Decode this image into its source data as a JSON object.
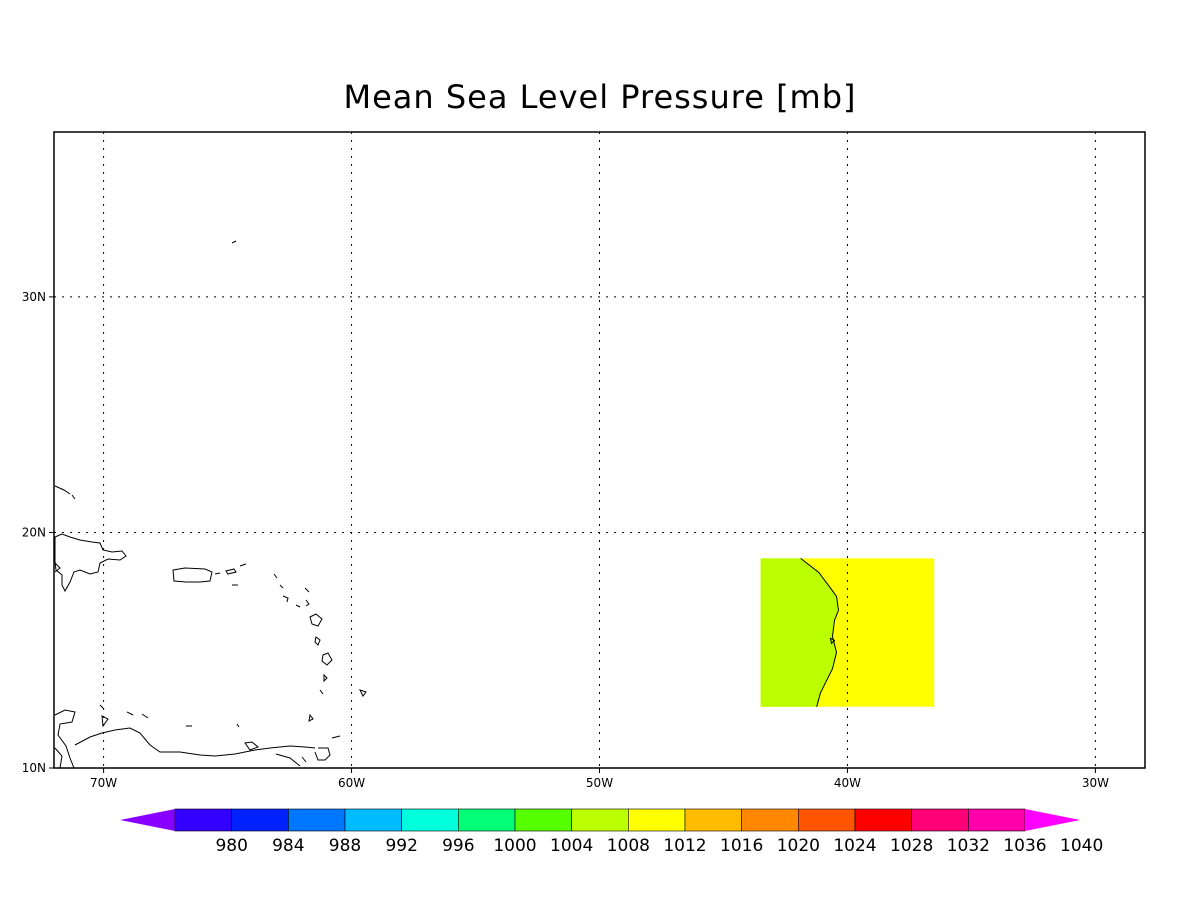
{
  "title": "Mean Sea Level Pressure [mb]",
  "map": {
    "lon_range": [
      -72,
      -28
    ],
    "lat_range": [
      10,
      37
    ],
    "lon_ticks": [
      {
        "lon": -70,
        "label": "70W"
      },
      {
        "lon": -60,
        "label": "60W"
      },
      {
        "lon": -50,
        "label": "50W"
      },
      {
        "lon": -40,
        "label": "40W"
      },
      {
        "lon": -30,
        "label": "30W"
      }
    ],
    "lat_ticks": [
      {
        "lat": 10,
        "label": "10N"
      },
      {
        "lat": 20,
        "label": "20N"
      },
      {
        "lat": 30,
        "label": "30N"
      }
    ],
    "grid": "dotted",
    "data_field": {
      "lon_range": [
        -43.5,
        -36.5
      ],
      "lat_range": [
        12.6,
        18.9
      ],
      "regions": [
        {
          "name": "1008-1012",
          "color": "#bbff00"
        },
        {
          "name": "1012-1016",
          "color": "#ffff00"
        }
      ]
    }
  },
  "colorbar": {
    "colors": [
      "#8800ff",
      "#3300ff",
      "#0022ff",
      "#0077ff",
      "#00bbff",
      "#00ffdd",
      "#00ff77",
      "#55ff00",
      "#bbff00",
      "#ffff00",
      "#ffbb00",
      "#ff8800",
      "#ff5500",
      "#ff0000",
      "#ff0077",
      "#ff00aa",
      "#ff00ff"
    ],
    "labels": [
      "980",
      "984",
      "988",
      "992",
      "996",
      "1000",
      "1004",
      "1008",
      "1012",
      "1016",
      "1020",
      "1024",
      "1028",
      "1032",
      "1036",
      "1040"
    ]
  }
}
